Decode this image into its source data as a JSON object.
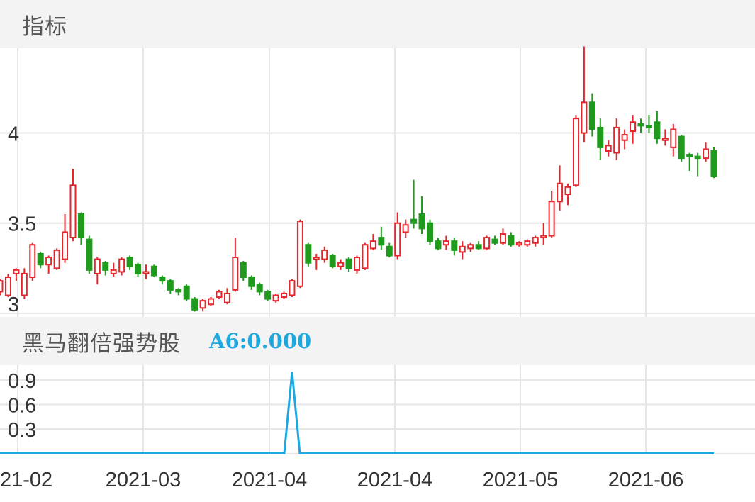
{
  "panels": {
    "main_title": "指标",
    "indicator_title": "黑马翻倍强势股",
    "indicator_value": "A6:0.000"
  },
  "colors": {
    "up": "#e5262d",
    "down": "#1f9a1c",
    "indicator_line": "#1ea8e0",
    "grid": "#e6e6e6",
    "panel_bar": "#f3f3f3"
  },
  "chart_data": [
    {
      "type": "candlestick",
      "x_tick_labels": [
        "21-02",
        "2021-03",
        "2021-04",
        "2021-04",
        "2021-05",
        "2021-06"
      ],
      "y_tick_labels": [
        "3",
        "3.5",
        "4"
      ],
      "y_ticks": [
        3,
        3.5,
        4
      ],
      "ylim": [
        2.98,
        4.47
      ],
      "grid": true,
      "candles": [
        [
          3.12,
          3.18,
          3.1,
          3.19
        ],
        [
          3.1,
          3.2,
          3.09,
          3.22
        ],
        [
          3.22,
          3.24,
          3.18,
          3.25
        ],
        [
          3.1,
          3.22,
          3.08,
          3.25
        ],
        [
          3.2,
          3.38,
          3.18,
          3.39
        ],
        [
          3.33,
          3.27,
          3.25,
          3.34
        ],
        [
          3.27,
          3.31,
          3.22,
          3.32
        ],
        [
          3.25,
          3.35,
          3.24,
          3.36
        ],
        [
          3.3,
          3.45,
          3.28,
          3.55
        ],
        [
          3.42,
          3.71,
          3.4,
          3.8
        ],
        [
          3.55,
          3.42,
          3.38,
          3.56
        ],
        [
          3.41,
          3.24,
          3.22,
          3.43
        ],
        [
          3.22,
          3.3,
          3.16,
          3.31
        ],
        [
          3.28,
          3.24,
          3.21,
          3.29
        ],
        [
          3.22,
          3.24,
          3.2,
          3.28
        ],
        [
          3.23,
          3.3,
          3.21,
          3.31
        ],
        [
          3.31,
          3.26,
          3.24,
          3.32
        ],
        [
          3.27,
          3.22,
          3.2,
          3.28
        ],
        [
          3.22,
          3.23,
          3.19,
          3.27
        ],
        [
          3.26,
          3.21,
          3.2,
          3.27
        ],
        [
          3.2,
          3.18,
          3.16,
          3.21
        ],
        [
          3.18,
          3.13,
          3.11,
          3.19
        ],
        [
          3.13,
          3.12,
          3.1,
          3.14
        ],
        [
          3.15,
          3.08,
          3.07,
          3.16
        ],
        [
          3.08,
          3.02,
          3.01,
          3.09
        ],
        [
          3.03,
          3.07,
          3.01,
          3.08
        ],
        [
          3.05,
          3.08,
          3.04,
          3.09
        ],
        [
          3.09,
          3.12,
          3.08,
          3.13
        ],
        [
          3.06,
          3.11,
          3.05,
          3.14
        ],
        [
          3.13,
          3.31,
          3.12,
          3.42
        ],
        [
          3.28,
          3.2,
          3.18,
          3.29
        ],
        [
          3.2,
          3.15,
          3.13,
          3.21
        ],
        [
          3.16,
          3.12,
          3.1,
          3.17
        ],
        [
          3.12,
          3.08,
          3.07,
          3.13
        ],
        [
          3.07,
          3.1,
          3.06,
          3.11
        ],
        [
          3.09,
          3.11,
          3.08,
          3.12
        ],
        [
          3.1,
          3.18,
          3.09,
          3.19
        ],
        [
          3.15,
          3.51,
          3.14,
          3.52
        ],
        [
          3.38,
          3.28,
          3.26,
          3.39
        ],
        [
          3.3,
          3.31,
          3.24,
          3.33
        ],
        [
          3.3,
          3.35,
          3.28,
          3.37
        ],
        [
          3.32,
          3.26,
          3.25,
          3.33
        ],
        [
          3.26,
          3.28,
          3.24,
          3.3
        ],
        [
          3.3,
          3.25,
          3.23,
          3.31
        ],
        [
          3.24,
          3.31,
          3.22,
          3.32
        ],
        [
          3.25,
          3.38,
          3.24,
          3.39
        ],
        [
          3.36,
          3.4,
          3.35,
          3.44
        ],
        [
          3.42,
          3.38,
          3.35,
          3.48
        ],
        [
          3.37,
          3.32,
          3.31,
          3.39
        ],
        [
          3.32,
          3.5,
          3.3,
          3.56
        ],
        [
          3.45,
          3.49,
          3.42,
          3.52
        ],
        [
          3.52,
          3.5,
          3.47,
          3.74
        ],
        [
          3.55,
          3.47,
          3.44,
          3.65
        ],
        [
          3.5,
          3.4,
          3.38,
          3.52
        ],
        [
          3.4,
          3.36,
          3.35,
          3.42
        ],
        [
          3.38,
          3.4,
          3.35,
          3.43
        ],
        [
          3.4,
          3.35,
          3.32,
          3.42
        ],
        [
          3.34,
          3.37,
          3.3,
          3.4
        ],
        [
          3.36,
          3.38,
          3.34,
          3.39
        ],
        [
          3.38,
          3.36,
          3.35,
          3.4
        ],
        [
          3.36,
          3.42,
          3.35,
          3.43
        ],
        [
          3.41,
          3.39,
          3.38,
          3.43
        ],
        [
          3.39,
          3.44,
          3.38,
          3.47
        ],
        [
          3.43,
          3.38,
          3.37,
          3.45
        ],
        [
          3.38,
          3.39,
          3.37,
          3.4
        ],
        [
          3.38,
          3.4,
          3.37,
          3.41
        ],
        [
          3.39,
          3.42,
          3.37,
          3.43
        ],
        [
          3.42,
          3.43,
          3.38,
          3.5
        ],
        [
          3.43,
          3.62,
          3.42,
          3.68
        ],
        [
          3.62,
          3.72,
          3.57,
          3.82
        ],
        [
          3.66,
          3.7,
          3.6,
          3.72
        ],
        [
          3.71,
          4.08,
          3.7,
          4.1
        ],
        [
          4.0,
          4.17,
          3.95,
          4.48
        ],
        [
          4.17,
          4.02,
          3.98,
          4.22
        ],
        [
          4.03,
          3.92,
          3.85,
          4.08
        ],
        [
          3.9,
          3.93,
          3.87,
          3.96
        ],
        [
          3.89,
          4.03,
          3.85,
          4.08
        ],
        [
          3.96,
          3.99,
          3.91,
          4.02
        ],
        [
          4.01,
          4.06,
          3.94,
          4.1
        ],
        [
          4.05,
          4.04,
          4.0,
          4.08
        ],
        [
          4.04,
          4.03,
          4.0,
          4.1
        ],
        [
          4.06,
          3.97,
          3.94,
          4.12
        ],
        [
          3.96,
          3.97,
          3.93,
          4.02
        ],
        [
          3.92,
          4.02,
          3.87,
          4.05
        ],
        [
          3.98,
          3.86,
          3.84,
          3.99
        ],
        [
          3.88,
          3.87,
          3.79,
          3.89
        ],
        [
          3.87,
          3.86,
          3.76,
          3.89
        ],
        [
          3.86,
          3.91,
          3.84,
          3.95
        ],
        [
          3.9,
          3.76,
          3.75,
          3.92
        ]
      ]
    },
    {
      "type": "line",
      "name": "A6",
      "y_tick_labels": [
        "0.3",
        "0.6",
        "0.9"
      ],
      "y_ticks": [
        0.3,
        0.6,
        0.9
      ],
      "ylim": [
        0,
        1.0
      ],
      "grid": true,
      "values": [
        0,
        0,
        0,
        0,
        0,
        0,
        0,
        0,
        0,
        0,
        0,
        0,
        0,
        0,
        0,
        0,
        0,
        0,
        0,
        0,
        0,
        0,
        0,
        0,
        0,
        0,
        0,
        0,
        0,
        0,
        0,
        0,
        0,
        0,
        0,
        0,
        0,
        0,
        0,
        0,
        0,
        0,
        0,
        0,
        0,
        0,
        0,
        0,
        0,
        0,
        0,
        0,
        0,
        0,
        0,
        0,
        0,
        0,
        0,
        0,
        0,
        0,
        0,
        0,
        0,
        0,
        0,
        0,
        0,
        0,
        0,
        0,
        0,
        0,
        0,
        0,
        0,
        0,
        0,
        0,
        0,
        0,
        0,
        0,
        0,
        0,
        0,
        0,
        0
      ],
      "spikes": [
        {
          "index": 36,
          "value": 1.0
        }
      ]
    }
  ]
}
